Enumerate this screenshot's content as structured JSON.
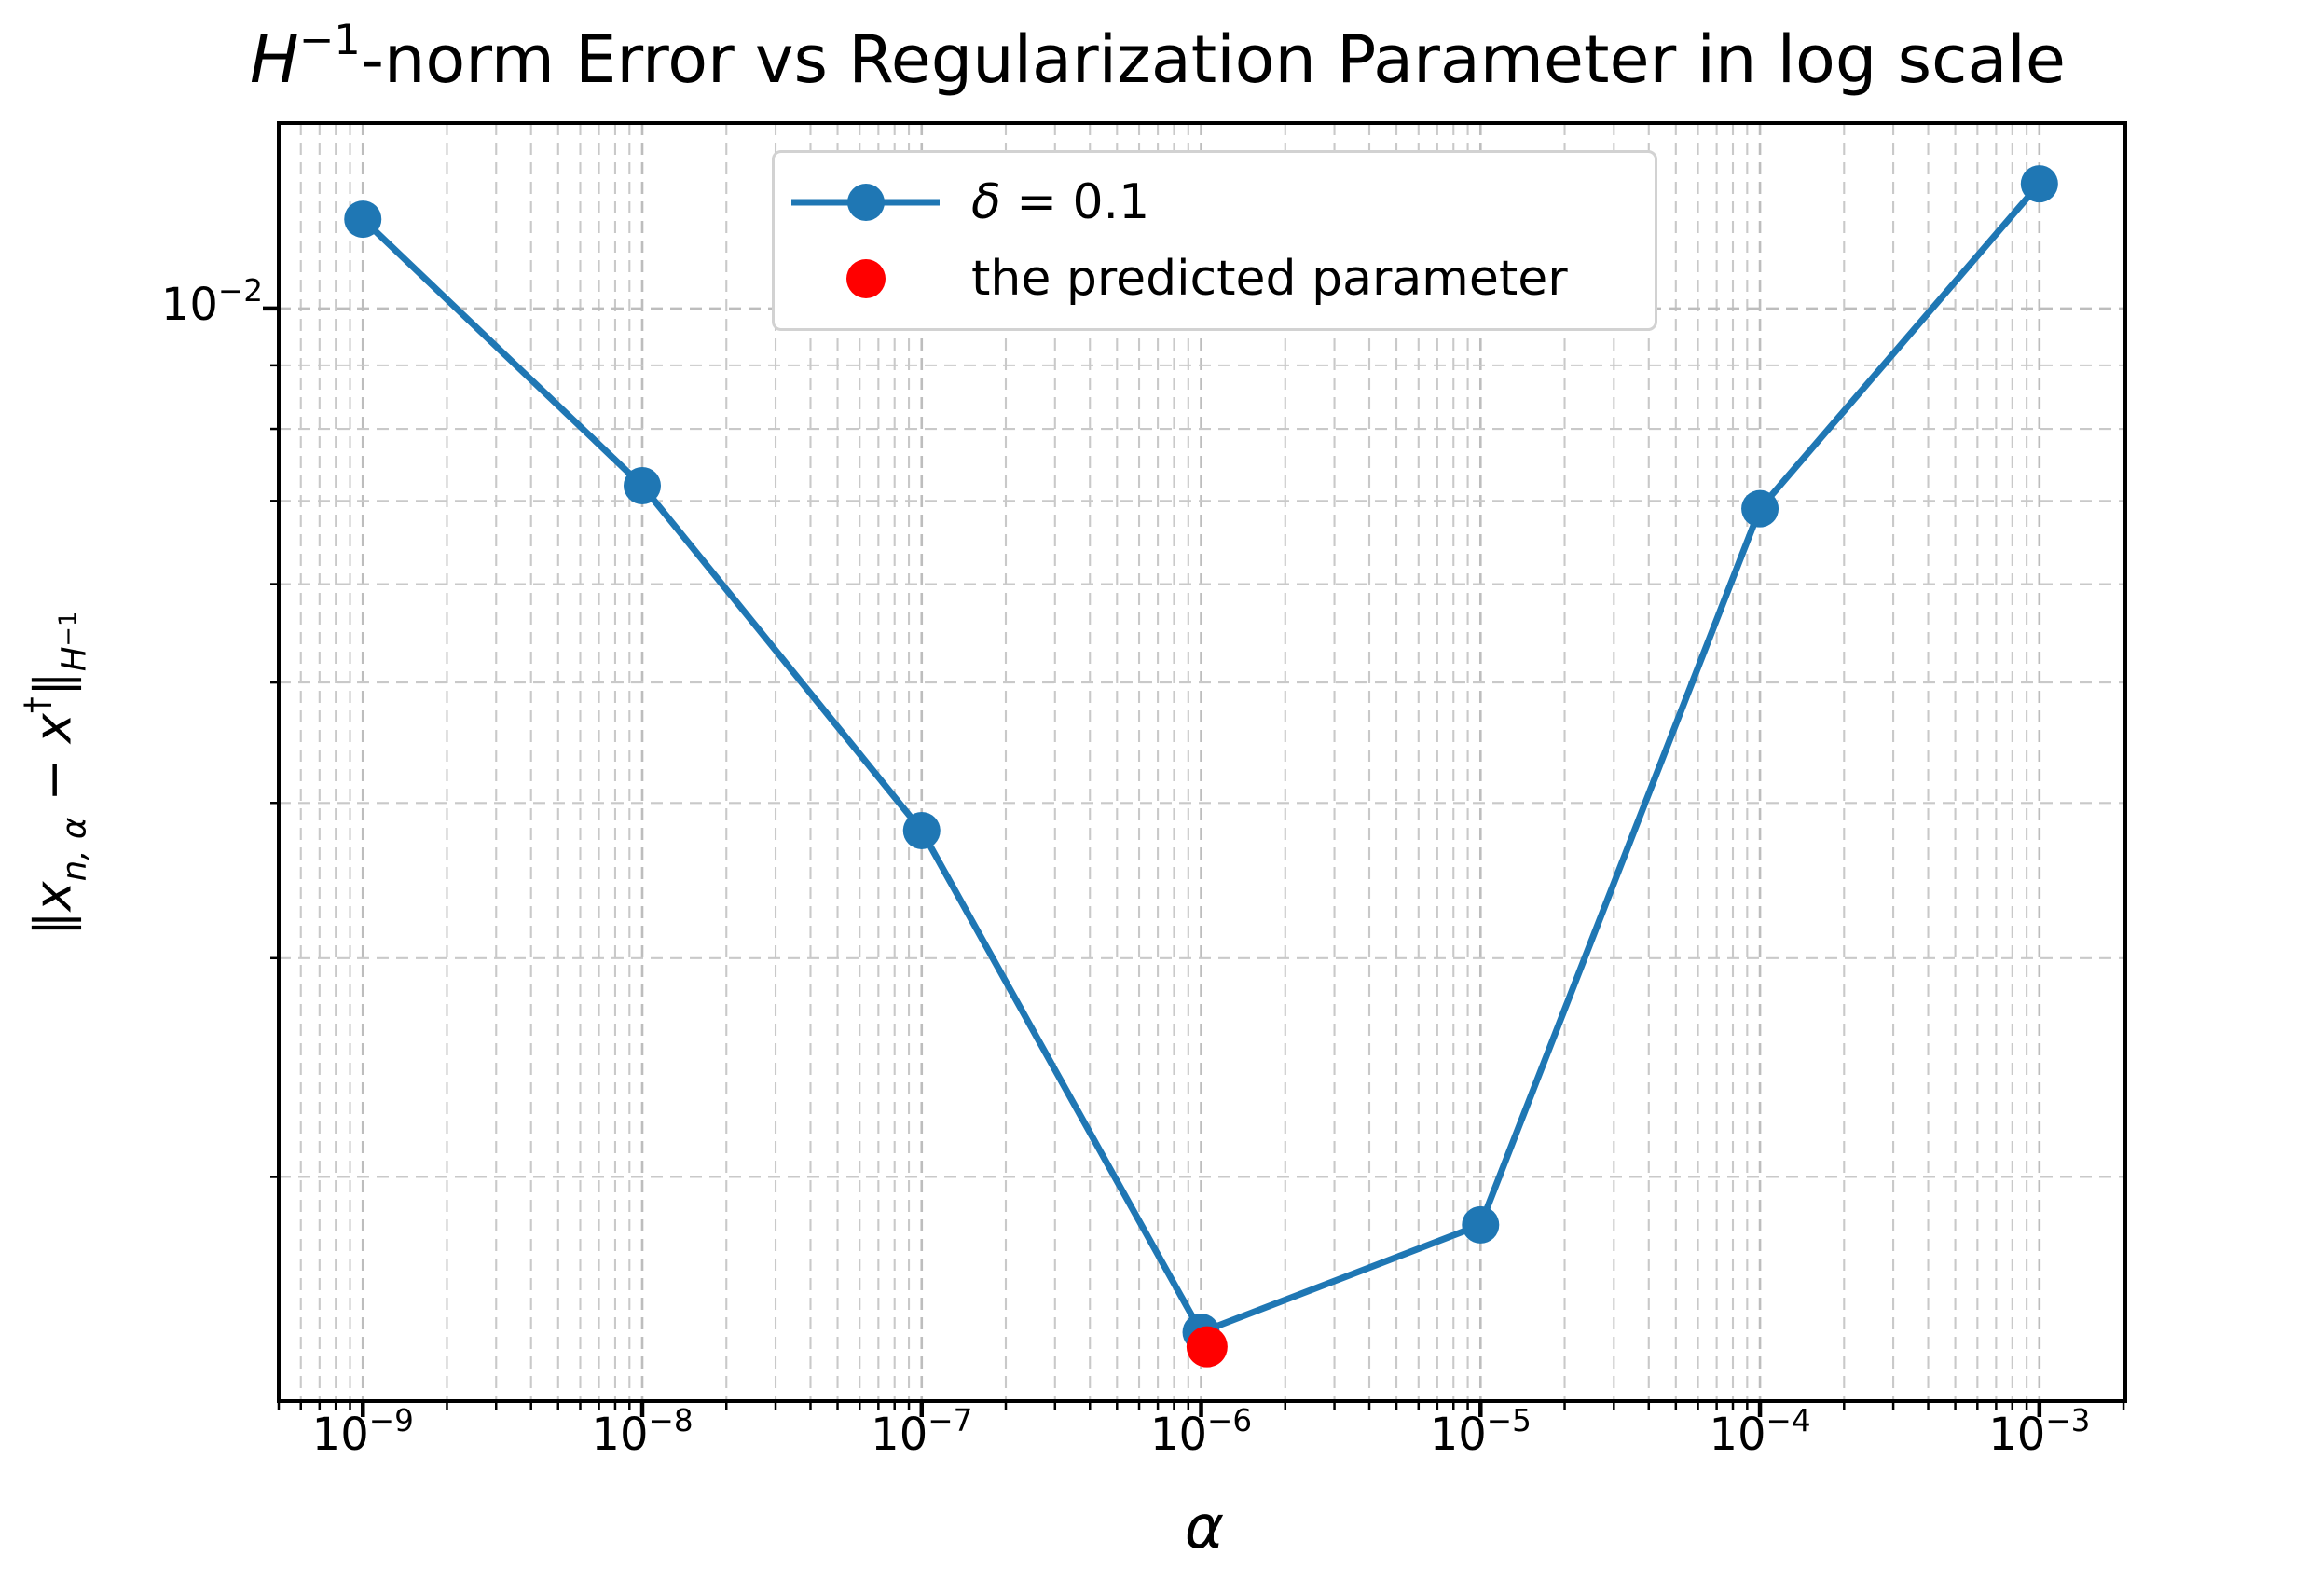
{
  "chart_data": {
    "type": "line",
    "title": "H^-1-norm Error vs Regularization Parameter in log scale",
    "xlabel": "α",
    "ylabel": "∥x_n,α − x†∥_H^-1",
    "xscale": "log",
    "yscale": "log",
    "grid": true,
    "legend_position": "upper left-center inside",
    "xlim": [
      5e-10,
      0.00203
    ],
    "ylim": [
      0.00132,
      0.0141
    ],
    "x": [
      1e-09,
      1e-08,
      1e-07,
      1e-06,
      1e-05,
      0.0001,
      0.001
    ],
    "series": [
      {
        "name": "δ = 0.1",
        "color": "#1f77b4",
        "marker": "circle",
        "values": [
          0.0118,
          0.0072,
          0.0038,
          0.0015,
          0.00183,
          0.0069,
          0.0126
        ]
      }
    ],
    "predicted_point": {
      "name": "the predicted parameter",
      "color": "#ff0000",
      "x": 1.05e-06,
      "y": 0.00146
    },
    "x_tick_labels": [
      "10⁻⁹",
      "10⁻⁸",
      "10⁻⁷",
      "10⁻⁶",
      "10⁻⁵",
      "10⁻⁴",
      "10⁻³"
    ],
    "y_tick_labels": [
      "10⁻²"
    ]
  },
  "title": {
    "var": "H",
    "exp": "−1",
    "rest": "-norm Error vs Regularization Parameter in log scale"
  },
  "xlabel": {
    "text": "α"
  },
  "ylabel": {
    "norm_open": "∥",
    "var1": "x",
    "sub1": "n, α",
    "minus": " − ",
    "var2": "x",
    "sup2": "†",
    "norm_close": "∥",
    "sub_h": "H",
    "sub_h_exp": "−1"
  },
  "axis": {
    "x_ticks": [
      {
        "value": 1e-09,
        "base": "10",
        "exp": "−9"
      },
      {
        "value": 1e-08,
        "base": "10",
        "exp": "−8"
      },
      {
        "value": 1e-07,
        "base": "10",
        "exp": "−7"
      },
      {
        "value": 1e-06,
        "base": "10",
        "exp": "−6"
      },
      {
        "value": 1e-05,
        "base": "10",
        "exp": "−5"
      },
      {
        "value": 0.0001,
        "base": "10",
        "exp": "−4"
      },
      {
        "value": 0.001,
        "base": "10",
        "exp": "−3"
      }
    ],
    "y_tick": {
      "value": 0.01,
      "base": "10",
      "exp": "−2"
    }
  },
  "legend": {
    "items": [
      {
        "marker": "line-circle",
        "color": "#1f77b4",
        "label_var": "δ",
        "label_rest": " = 0.1"
      },
      {
        "marker": "circle",
        "color": "#ff0000",
        "label": "the predicted parameter"
      }
    ]
  },
  "colors": {
    "series": "#1f77b4",
    "predicted": "#ff0000",
    "grid_major": "#bdbdbd",
    "grid_minor": "#c9c9c9",
    "spine": "#000000",
    "legend_border": "#d2d2d2"
  }
}
